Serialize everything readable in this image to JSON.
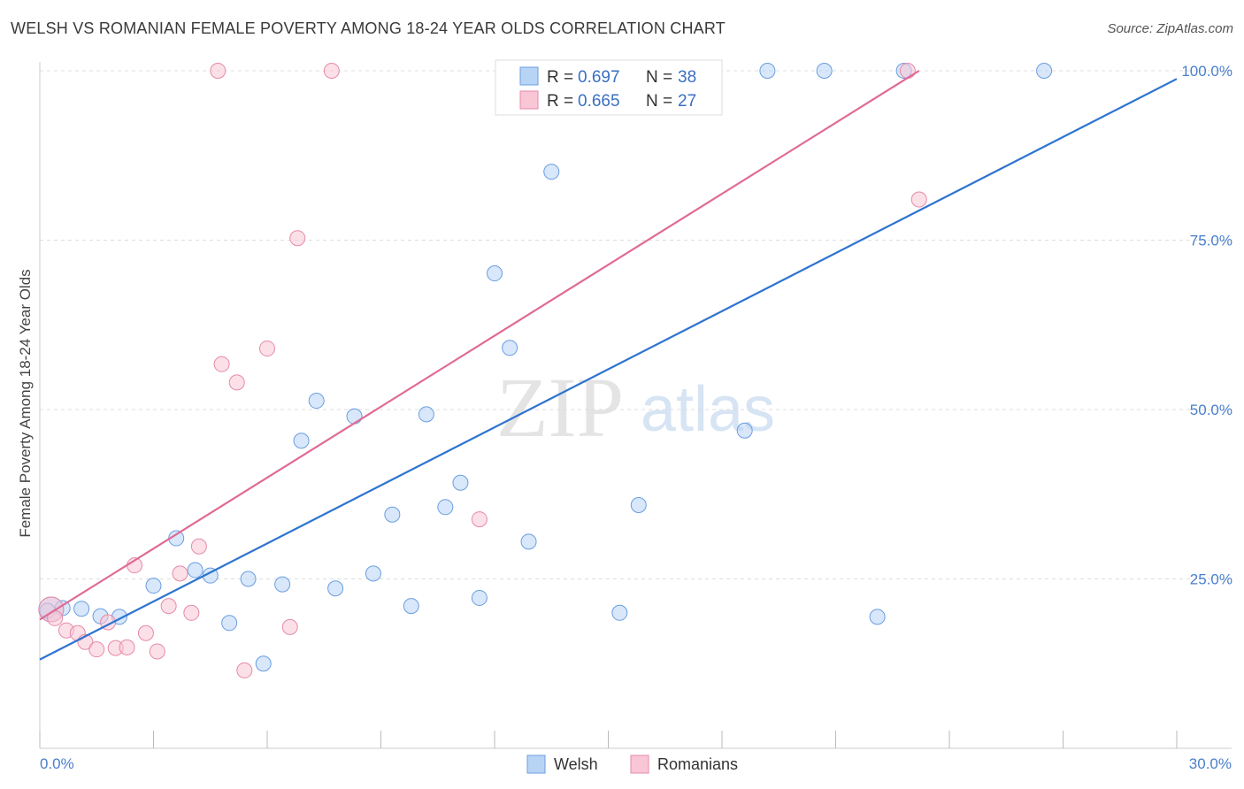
{
  "title": "WELSH VS ROMANIAN FEMALE POVERTY AMONG 18-24 YEAR OLDS CORRELATION CHART",
  "source": "Source: ZipAtlas.com",
  "watermark": {
    "zip": "ZIP",
    "atlas": "atlas"
  },
  "legend": {
    "welsh": {
      "r_label": "R =",
      "r_value": "0.697",
      "n_label": "N =",
      "n_value": "38"
    },
    "romanians": {
      "r_label": "R =",
      "r_value": "0.665",
      "n_label": "N =",
      "n_value": "27"
    }
  },
  "colors": {
    "welsh_fill": "#b8d4f5",
    "welsh_stroke": "#6a9ee0",
    "welsh_line": "#2e74d0",
    "romanians_fill": "#f9c6d6",
    "romanians_stroke": "#e58aa8",
    "romanians_line": "#e06a96",
    "grid": "#dddddd",
    "axis_label": "#4a7fcc"
  },
  "chart_data": {
    "type": "scatter",
    "title": "WELSH VS ROMANIAN FEMALE POVERTY AMONG 18-24 YEAR OLDS CORRELATION CHART",
    "xlabel": "",
    "ylabel": "Female Poverty Among 18-24 Year Olds",
    "xlim": [
      0,
      30
    ],
    "ylim": [
      0,
      100
    ],
    "x_tick_labels": [
      "0.0%",
      "30.0%"
    ],
    "y_tick_labels": [
      "25.0%",
      "50.0%",
      "75.0%",
      "100.0%"
    ],
    "grid": true,
    "legend_position": "top-center",
    "series": [
      {
        "name": "Welsh",
        "points": [
          [
            0.3,
            20.5
          ],
          [
            0.6,
            20.7
          ],
          [
            1.1,
            20.6
          ],
          [
            1.6,
            19.5
          ],
          [
            2.1,
            19.4
          ],
          [
            3.0,
            24.0
          ],
          [
            3.6,
            31.0
          ],
          [
            4.1,
            26.3
          ],
          [
            4.5,
            25.5
          ],
          [
            5.0,
            18.5
          ],
          [
            5.5,
            25.0
          ],
          [
            5.9,
            12.5
          ],
          [
            6.4,
            24.2
          ],
          [
            6.9,
            45.4
          ],
          [
            7.3,
            51.3
          ],
          [
            7.8,
            23.6
          ],
          [
            8.3,
            49.0
          ],
          [
            8.8,
            25.8
          ],
          [
            9.3,
            34.5
          ],
          [
            9.8,
            21.0
          ],
          [
            10.2,
            49.3
          ],
          [
            10.7,
            35.6
          ],
          [
            11.1,
            39.2
          ],
          [
            11.6,
            22.2
          ],
          [
            12.0,
            70.1
          ],
          [
            12.4,
            59.1
          ],
          [
            12.9,
            30.5
          ],
          [
            13.5,
            85.1
          ],
          [
            14.6,
            100
          ],
          [
            15.3,
            20.0
          ],
          [
            15.8,
            35.9
          ],
          [
            18.6,
            46.9
          ],
          [
            19.2,
            100
          ],
          [
            20.7,
            100
          ],
          [
            22.1,
            19.4
          ],
          [
            22.8,
            100
          ],
          [
            26.5,
            100
          ],
          [
            0.2,
            20.3
          ]
        ]
      },
      {
        "name": "Romanians",
        "points": [
          [
            0.3,
            20.5
          ],
          [
            0.4,
            19.2
          ],
          [
            0.7,
            17.4
          ],
          [
            1.0,
            17.0
          ],
          [
            1.2,
            15.7
          ],
          [
            1.5,
            14.6
          ],
          [
            1.8,
            18.6
          ],
          [
            2.0,
            14.8
          ],
          [
            2.3,
            14.9
          ],
          [
            2.5,
            27.0
          ],
          [
            2.8,
            17.0
          ],
          [
            3.1,
            14.3
          ],
          [
            3.4,
            21.0
          ],
          [
            3.7,
            25.8
          ],
          [
            4.0,
            20.0
          ],
          [
            4.2,
            29.8
          ],
          [
            4.8,
            56.7
          ],
          [
            4.7,
            100
          ],
          [
            5.2,
            54.0
          ],
          [
            5.4,
            11.5
          ],
          [
            6.0,
            59.0
          ],
          [
            6.6,
            17.9
          ],
          [
            6.8,
            75.3
          ],
          [
            7.7,
            100
          ],
          [
            11.6,
            33.8
          ],
          [
            22.9,
            100
          ],
          [
            23.2,
            81.0
          ]
        ]
      }
    ],
    "trend_lines": [
      {
        "series": "Welsh",
        "from": [
          0,
          13.1
        ],
        "to": [
          30,
          98.8
        ]
      },
      {
        "series": "Romanians",
        "from": [
          0,
          19.0
        ],
        "to": [
          23.2,
          100
        ]
      }
    ]
  },
  "bottom_legend": [
    "Welsh",
    "Romanians"
  ]
}
